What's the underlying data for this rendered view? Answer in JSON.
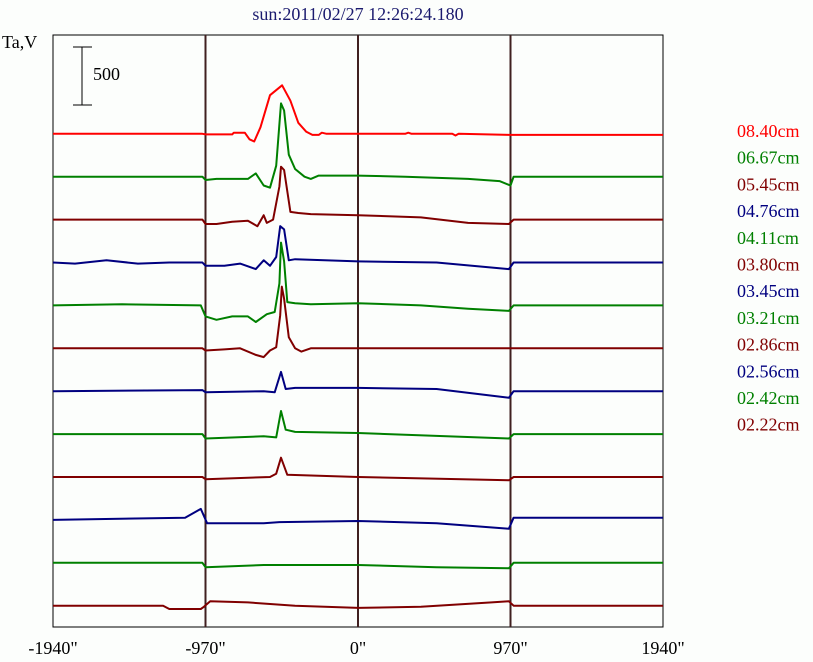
{
  "chart_data": {
    "type": "line",
    "title": "sun:2011/02/27 12:26:24.180",
    "ylabel": "Ta,V",
    "xlabel": "",
    "xlim": [
      -1940,
      1940
    ],
    "ylim": [
      -193,
      5175
    ],
    "x_ticks": [
      {
        "value": -1940,
        "label": "-1940\""
      },
      {
        "value": -970,
        "label": "-970\""
      },
      {
        "value": 0,
        "label": "0\""
      },
      {
        "value": 970,
        "label": "970\""
      },
      {
        "value": 1940,
        "label": "1940\""
      }
    ],
    "vertical_lines": [
      -970,
      0,
      970
    ],
    "scale_bar": {
      "value": 500,
      "label": "500"
    },
    "offset_step": 389,
    "legend_position": "right",
    "series": [
      {
        "name": "08.40cm",
        "color": "#ff0000",
        "offset": 4279,
        "points": [
          [
            -1940,
            0
          ],
          [
            -990,
            0
          ],
          [
            -970,
            -5
          ],
          [
            -800,
            -5
          ],
          [
            -790,
            10
          ],
          [
            -720,
            10
          ],
          [
            -690,
            -50
          ],
          [
            -660,
            -70
          ],
          [
            -620,
            60
          ],
          [
            -560,
            350
          ],
          [
            -483,
            440
          ],
          [
            -430,
            300
          ],
          [
            -380,
            100
          ],
          [
            -330,
            20
          ],
          [
            -290,
            -10
          ],
          [
            -250,
            -10
          ],
          [
            -230,
            10
          ],
          [
            -200,
            0
          ],
          [
            300,
            0
          ],
          [
            320,
            10
          ],
          [
            340,
            0
          ],
          [
            600,
            0
          ],
          [
            620,
            -15
          ],
          [
            640,
            0
          ],
          [
            970,
            -10
          ],
          [
            1940,
            -10
          ]
        ]
      },
      {
        "name": "06.67cm",
        "color": "#008000",
        "offset": 3890,
        "points": [
          [
            -1940,
            0
          ],
          [
            -990,
            0
          ],
          [
            -970,
            -30
          ],
          [
            -900,
            -20
          ],
          [
            -700,
            -20
          ],
          [
            -650,
            30
          ],
          [
            -600,
            -80
          ],
          [
            -560,
            -100
          ],
          [
            -520,
            100
          ],
          [
            -490,
            665
          ],
          [
            -470,
            600
          ],
          [
            -440,
            200
          ],
          [
            -400,
            70
          ],
          [
            -340,
            0
          ],
          [
            -300,
            -20
          ],
          [
            -250,
            10
          ],
          [
            0,
            10
          ],
          [
            300,
            0
          ],
          [
            700,
            -20
          ],
          [
            900,
            -40
          ],
          [
            970,
            -80
          ],
          [
            990,
            0
          ],
          [
            1940,
            0
          ]
        ]
      },
      {
        "name": "05.45cm",
        "color": "#800000",
        "offset": 3501,
        "points": [
          [
            -1940,
            0
          ],
          [
            -990,
            0
          ],
          [
            -970,
            -40
          ],
          [
            -900,
            -40
          ],
          [
            -800,
            -20
          ],
          [
            -700,
            -10
          ],
          [
            -640,
            -60
          ],
          [
            -600,
            40
          ],
          [
            -580,
            -30
          ],
          [
            -540,
            0
          ],
          [
            -500,
            300
          ],
          [
            -490,
            480
          ],
          [
            -470,
            450
          ],
          [
            -430,
            70
          ],
          [
            -380,
            60
          ],
          [
            -300,
            50
          ],
          [
            0,
            40
          ],
          [
            400,
            20
          ],
          [
            700,
            -30
          ],
          [
            960,
            -40
          ],
          [
            990,
            0
          ],
          [
            1940,
            0
          ]
        ]
      },
      {
        "name": "04.76cm",
        "color": "#000080",
        "offset": 3112,
        "points": [
          [
            -1940,
            0
          ],
          [
            -1800,
            -10
          ],
          [
            -1600,
            20
          ],
          [
            -1400,
            -10
          ],
          [
            -1200,
            0
          ],
          [
            -990,
            0
          ],
          [
            -970,
            -30
          ],
          [
            -850,
            -30
          ],
          [
            -750,
            -10
          ],
          [
            -650,
            -60
          ],
          [
            -600,
            20
          ],
          [
            -560,
            -30
          ],
          [
            -520,
            50
          ],
          [
            -495,
            330
          ],
          [
            -470,
            300
          ],
          [
            -440,
            20
          ],
          [
            -400,
            30
          ],
          [
            0,
            10
          ],
          [
            500,
            0
          ],
          [
            960,
            -60
          ],
          [
            990,
            0
          ],
          [
            1940,
            0
          ]
        ]
      },
      {
        "name": "04.11cm",
        "color": "#008000",
        "offset": 2723,
        "points": [
          [
            -1940,
            0
          ],
          [
            -1500,
            10
          ],
          [
            -1000,
            0
          ],
          [
            -970,
            -100
          ],
          [
            -900,
            -130
          ],
          [
            -800,
            -100
          ],
          [
            -700,
            -100
          ],
          [
            -650,
            -150
          ],
          [
            -580,
            -80
          ],
          [
            -530,
            -60
          ],
          [
            -500,
            200
          ],
          [
            -490,
            570
          ],
          [
            -470,
            400
          ],
          [
            -450,
            30
          ],
          [
            -400,
            20
          ],
          [
            -300,
            10
          ],
          [
            0,
            20
          ],
          [
            400,
            0
          ],
          [
            700,
            -30
          ],
          [
            960,
            -50
          ],
          [
            990,
            0
          ],
          [
            1940,
            0
          ]
        ]
      },
      {
        "name": "03.80cm",
        "color": "#800000",
        "offset": 2334,
        "points": [
          [
            -1940,
            0
          ],
          [
            -990,
            0
          ],
          [
            -970,
            -20
          ],
          [
            -850,
            -10
          ],
          [
            -750,
            0
          ],
          [
            -650,
            -60
          ],
          [
            -600,
            -80
          ],
          [
            -560,
            -20
          ],
          [
            -520,
            10
          ],
          [
            -495,
            300
          ],
          [
            -485,
            560
          ],
          [
            -470,
            450
          ],
          [
            -440,
            100
          ],
          [
            -400,
            0
          ],
          [
            -360,
            -30
          ],
          [
            -300,
            0
          ],
          [
            0,
            0
          ],
          [
            960,
            0
          ],
          [
            990,
            0
          ],
          [
            1940,
            0
          ]
        ]
      },
      {
        "name": "03.45cm",
        "color": "#000080",
        "offset": 1945,
        "points": [
          [
            -1940,
            0
          ],
          [
            -990,
            10
          ],
          [
            -970,
            -10
          ],
          [
            -600,
            0
          ],
          [
            -530,
            -10
          ],
          [
            -490,
            175
          ],
          [
            -460,
            20
          ],
          [
            -400,
            30
          ],
          [
            0,
            30
          ],
          [
            500,
            20
          ],
          [
            960,
            -60
          ],
          [
            990,
            0
          ],
          [
            1940,
            0
          ]
        ]
      },
      {
        "name": "03.21cm",
        "color": "#008000",
        "offset": 1556,
        "points": [
          [
            -1940,
            0
          ],
          [
            -990,
            0
          ],
          [
            -970,
            -40
          ],
          [
            -600,
            -20
          ],
          [
            -520,
            -30
          ],
          [
            -490,
            210
          ],
          [
            -460,
            40
          ],
          [
            -400,
            20
          ],
          [
            0,
            10
          ],
          [
            960,
            -40
          ],
          [
            990,
            0
          ],
          [
            1940,
            0
          ]
        ]
      },
      {
        "name": "02.86cm",
        "color": "#800000",
        "offset": 1167,
        "points": [
          [
            -1940,
            0
          ],
          [
            -990,
            0
          ],
          [
            -970,
            -20
          ],
          [
            -560,
            0
          ],
          [
            -520,
            30
          ],
          [
            -490,
            175
          ],
          [
            -450,
            20
          ],
          [
            0,
            0
          ],
          [
            960,
            -30
          ],
          [
            990,
            0
          ],
          [
            1940,
            0
          ]
        ]
      },
      {
        "name": "02.56cm",
        "color": "#000080",
        "offset": 778,
        "points": [
          [
            -1940,
            0
          ],
          [
            -1100,
            20
          ],
          [
            -1000,
            100
          ],
          [
            -960,
            -30
          ],
          [
            -600,
            -30
          ],
          [
            -500,
            -20
          ],
          [
            0,
            -10
          ],
          [
            500,
            -30
          ],
          [
            960,
            -80
          ],
          [
            990,
            20
          ],
          [
            1940,
            20
          ]
        ]
      },
      {
        "name": "02.42cm",
        "color": "#008000",
        "offset": 389,
        "points": [
          [
            -1940,
            0
          ],
          [
            -990,
            0
          ],
          [
            -970,
            -40
          ],
          [
            -600,
            -20
          ],
          [
            0,
            -20
          ],
          [
            500,
            -40
          ],
          [
            960,
            -50
          ],
          [
            990,
            0
          ],
          [
            1940,
            0
          ]
        ]
      },
      {
        "name": "02.22cm",
        "color": "#800000",
        "offset": 0,
        "points": [
          [
            -1940,
            0
          ],
          [
            -1240,
            0
          ],
          [
            -1200,
            -30
          ],
          [
            -1000,
            -30
          ],
          [
            -980,
            -10
          ],
          [
            -940,
            40
          ],
          [
            -700,
            30
          ],
          [
            -400,
            0
          ],
          [
            0,
            -20
          ],
          [
            400,
            -10
          ],
          [
            850,
            30
          ],
          [
            960,
            40
          ],
          [
            990,
            0
          ],
          [
            1940,
            0
          ]
        ]
      }
    ]
  }
}
